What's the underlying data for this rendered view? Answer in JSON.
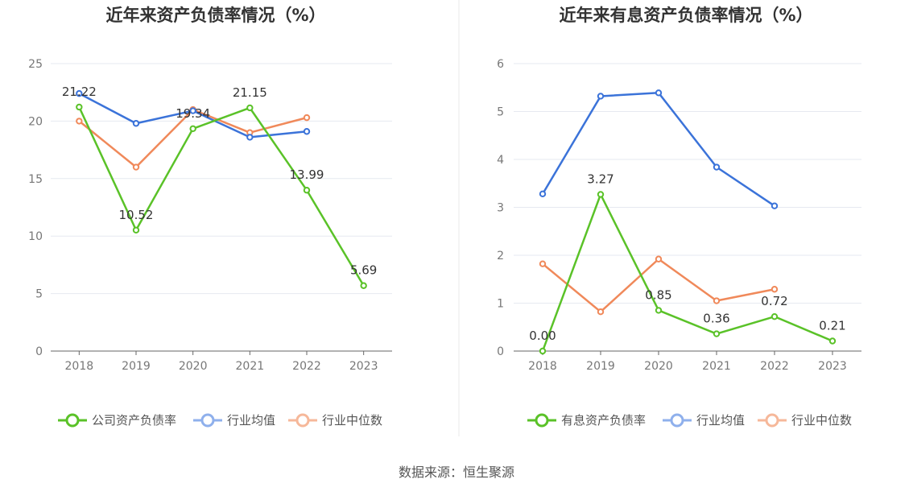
{
  "colors": {
    "company": "#5ac228",
    "industry_avg": "#3b73d9",
    "industry_median": "#f0895a",
    "grid": "#e6e9f0",
    "axis": "#666666",
    "divider": "#e8e8e8"
  },
  "source": "数据来源：恒生聚源",
  "chart_data": [
    {
      "type": "line",
      "title": "近年来资产负债率情况（%）",
      "categories": [
        "2018",
        "2019",
        "2020",
        "2021",
        "2022",
        "2023"
      ],
      "ylim": [
        0,
        25
      ],
      "yticks": [
        0,
        5,
        10,
        15,
        20,
        25
      ],
      "grid": true,
      "legend_position": "bottom",
      "series": [
        {
          "name": "公司资产负债率",
          "values": [
            21.22,
            10.52,
            19.34,
            21.15,
            13.99,
            5.69
          ],
          "labels": [
            "21.22",
            "10.52",
            "19.34",
            "21.15",
            "13.99",
            "5.69"
          ]
        },
        {
          "name": "行业均值",
          "values": [
            22.4,
            19.8,
            20.9,
            18.6,
            19.1,
            null
          ]
        },
        {
          "name": "行业中位数",
          "values": [
            20.0,
            16.0,
            21.0,
            19.0,
            20.3,
            null
          ]
        }
      ]
    },
    {
      "type": "line",
      "title": "近年来有息资产负债率情况（%）",
      "categories": [
        "2018",
        "2019",
        "2020",
        "2021",
        "2022",
        "2023"
      ],
      "ylim": [
        0,
        6
      ],
      "yticks": [
        0,
        1,
        2,
        3,
        4,
        5,
        6
      ],
      "grid": true,
      "legend_position": "bottom",
      "series": [
        {
          "name": "有息资产负债率",
          "values": [
            0.0,
            3.27,
            0.85,
            0.36,
            0.72,
            0.21
          ],
          "labels": [
            "0.00",
            "3.27",
            "0.85",
            "0.36",
            "0.72",
            "0.21"
          ]
        },
        {
          "name": "行业均值",
          "values": [
            3.28,
            5.32,
            5.39,
            3.84,
            3.03,
            null
          ]
        },
        {
          "name": "行业中位数",
          "values": [
            1.82,
            0.82,
            1.92,
            1.05,
            1.29,
            null
          ]
        }
      ]
    }
  ]
}
